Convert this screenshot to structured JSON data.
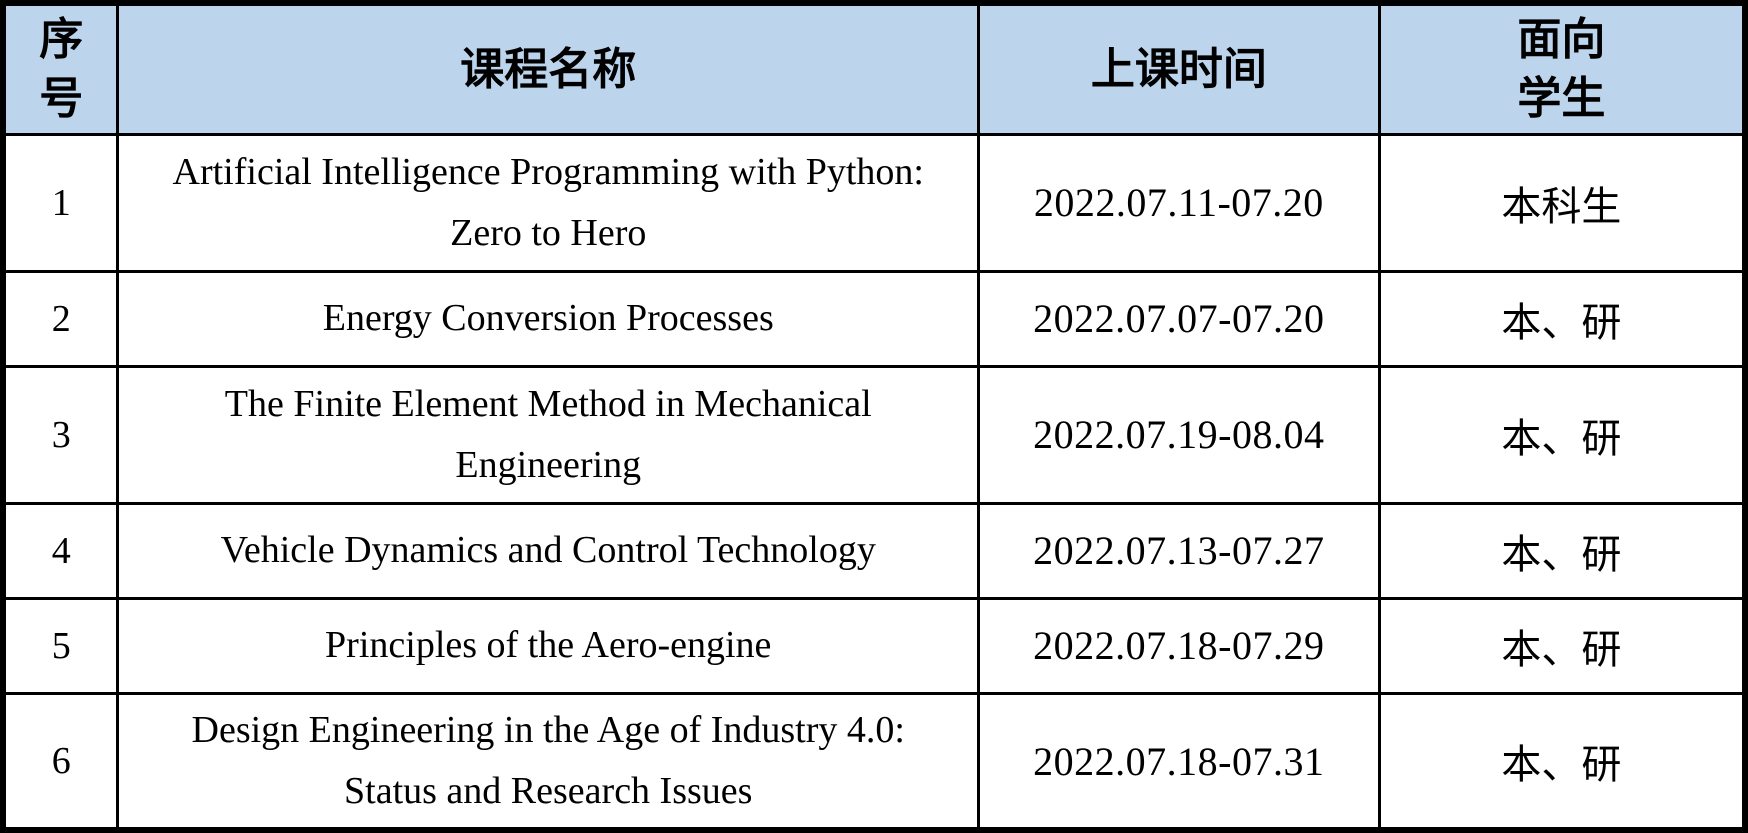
{
  "colors": {
    "header_bg": "#BCD5EC",
    "border": "#000000",
    "text": "#000000"
  },
  "table": {
    "headers": {
      "no": "序\n号",
      "course": "课程名称",
      "time": "上课时间",
      "students": "面向\n学生"
    },
    "rows": [
      {
        "no": "1",
        "course": "Artificial Intelligence Programming with Python:\nZero to Hero",
        "time": "2022.07.11-07.20",
        "students": "本科生"
      },
      {
        "no": "2",
        "course": "Energy Conversion Processes",
        "time": "2022.07.07-07.20",
        "students": "本、研"
      },
      {
        "no": "3",
        "course": "The Finite Element Method in Mechanical\nEngineering",
        "time": "2022.07.19-08.04",
        "students": "本、研"
      },
      {
        "no": "4",
        "course": "Vehicle Dynamics and Control Technology",
        "time": "2022.07.13-07.27",
        "students": "本、研"
      },
      {
        "no": "5",
        "course": "Principles of the Aero-engine",
        "time": "2022.07.18-07.29",
        "students": "本、研"
      },
      {
        "no": "6",
        "course": "Design Engineering in the Age of Industry 4.0:\nStatus and Research Issues",
        "time": "2022.07.18-07.31",
        "students": "本、研"
      }
    ]
  }
}
